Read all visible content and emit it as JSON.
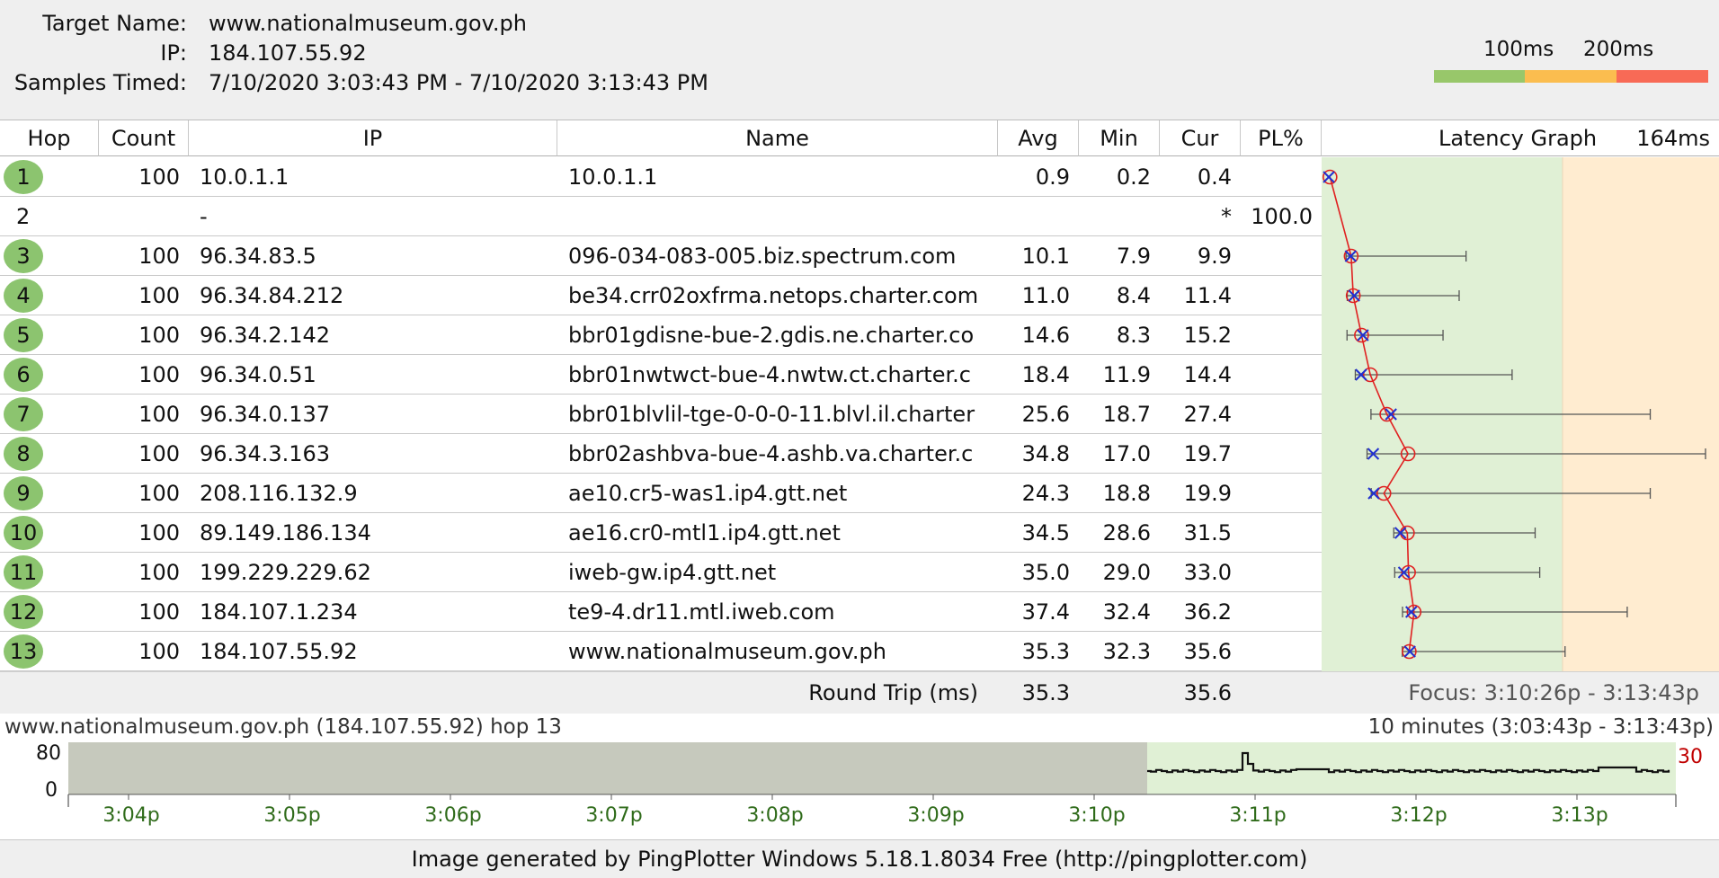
{
  "header": {
    "target_label": "Target Name:",
    "target_value": "www.nationalmuseum.gov.ph",
    "ip_label": "IP:",
    "ip_value": "184.107.55.92",
    "samples_label": "Samples Timed:",
    "samples_value": "7/10/2020 3:03:43 PM - 7/10/2020 3:13:43 PM"
  },
  "legend": {
    "label_100": "100ms",
    "label_200": "200ms",
    "colors": {
      "good": "#98c76a",
      "warn": "#fbbd4f",
      "bad": "#f86a56"
    }
  },
  "columns": {
    "hop": "Hop",
    "count": "Count",
    "ip": "IP",
    "name": "Name",
    "avg": "Avg",
    "min": "Min",
    "cur": "Cur",
    "pl": "PL%",
    "graph": "Latency Graph",
    "graph_max": "164ms"
  },
  "hops": [
    {
      "hop": "1",
      "count": "100",
      "ip": "10.0.1.1",
      "name": "10.0.1.1",
      "avg": "0.9",
      "min": "0.2",
      "cur": "0.4",
      "pl": "",
      "badge": true
    },
    {
      "hop": "2",
      "count": "",
      "ip": "-",
      "name": "",
      "avg": "",
      "min": "",
      "cur": "*",
      "pl": "100.0",
      "badge": false
    },
    {
      "hop": "3",
      "count": "100",
      "ip": "96.34.83.5",
      "name": "096-034-083-005.biz.spectrum.com",
      "avg": "10.1",
      "min": "7.9",
      "cur": "9.9",
      "pl": "",
      "badge": true
    },
    {
      "hop": "4",
      "count": "100",
      "ip": "96.34.84.212",
      "name": "be34.crr02oxfrma.netops.charter.com",
      "avg": "11.0",
      "min": "8.4",
      "cur": "11.4",
      "pl": "",
      "badge": true
    },
    {
      "hop": "5",
      "count": "100",
      "ip": "96.34.2.142",
      "name": "bbr01gdisne-bue-2.gdis.ne.charter.co",
      "avg": "14.6",
      "min": "8.3",
      "cur": "15.2",
      "pl": "",
      "badge": true
    },
    {
      "hop": "6",
      "count": "100",
      "ip": "96.34.0.51",
      "name": "bbr01nwtwct-bue-4.nwtw.ct.charter.c",
      "avg": "18.4",
      "min": "11.9",
      "cur": "14.4",
      "pl": "",
      "badge": true
    },
    {
      "hop": "7",
      "count": "100",
      "ip": "96.34.0.137",
      "name": "bbr01blvlil-tge-0-0-0-11.blvl.il.charter",
      "avg": "25.6",
      "min": "18.7",
      "cur": "27.4",
      "pl": "",
      "badge": true
    },
    {
      "hop": "8",
      "count": "100",
      "ip": "96.34.3.163",
      "name": "bbr02ashbva-bue-4.ashb.va.charter.c",
      "avg": "34.8",
      "min": "17.0",
      "cur": "19.7",
      "pl": "",
      "badge": true
    },
    {
      "hop": "9",
      "count": "100",
      "ip": "208.116.132.9",
      "name": "ae10.cr5-was1.ip4.gtt.net",
      "avg": "24.3",
      "min": "18.8",
      "cur": "19.9",
      "pl": "",
      "badge": true
    },
    {
      "hop": "10",
      "count": "100",
      "ip": "89.149.186.134",
      "name": "ae16.cr0-mtl1.ip4.gtt.net",
      "avg": "34.5",
      "min": "28.6",
      "cur": "31.5",
      "pl": "",
      "badge": true
    },
    {
      "hop": "11",
      "count": "100",
      "ip": "199.229.229.62",
      "name": "iweb-gw.ip4.gtt.net",
      "avg": "35.0",
      "min": "29.0",
      "cur": "33.0",
      "pl": "",
      "badge": true
    },
    {
      "hop": "12",
      "count": "100",
      "ip": "184.107.1.234",
      "name": "te9-4.dr11.mtl.iweb.com",
      "avg": "37.4",
      "min": "32.4",
      "cur": "36.2",
      "pl": "",
      "badge": true
    },
    {
      "hop": "13",
      "count": "100",
      "ip": "184.107.55.92",
      "name": "www.nationalmuseum.gov.ph",
      "avg": "35.3",
      "min": "32.3",
      "cur": "35.6",
      "pl": "",
      "badge": true
    }
  ],
  "graph_maxes": [
    null,
    null,
    60,
    57,
    50,
    80,
    140,
    164,
    140,
    90,
    92,
    130,
    103
  ],
  "roundtrip": {
    "label": "Round Trip (ms)",
    "avg": "35.3",
    "cur": "35.6",
    "focus": "Focus: 3:10:26p - 3:13:43p"
  },
  "history": {
    "title": "www.nationalmuseum.gov.ph (184.107.55.92) hop 13",
    "range": "10 minutes (3:03:43p - 3:13:43p)",
    "y_top": "80",
    "y_bottom": "0",
    "right_value": "30",
    "ticks": [
      "3:04p",
      "3:05p",
      "3:06p",
      "3:07p",
      "3:08p",
      "3:09p",
      "3:10p",
      "3:11p",
      "3:12p",
      "3:13p"
    ]
  },
  "footer": "Image generated by PingPlotter Windows 5.18.1.8034 Free (http://pingplotter.com)"
}
